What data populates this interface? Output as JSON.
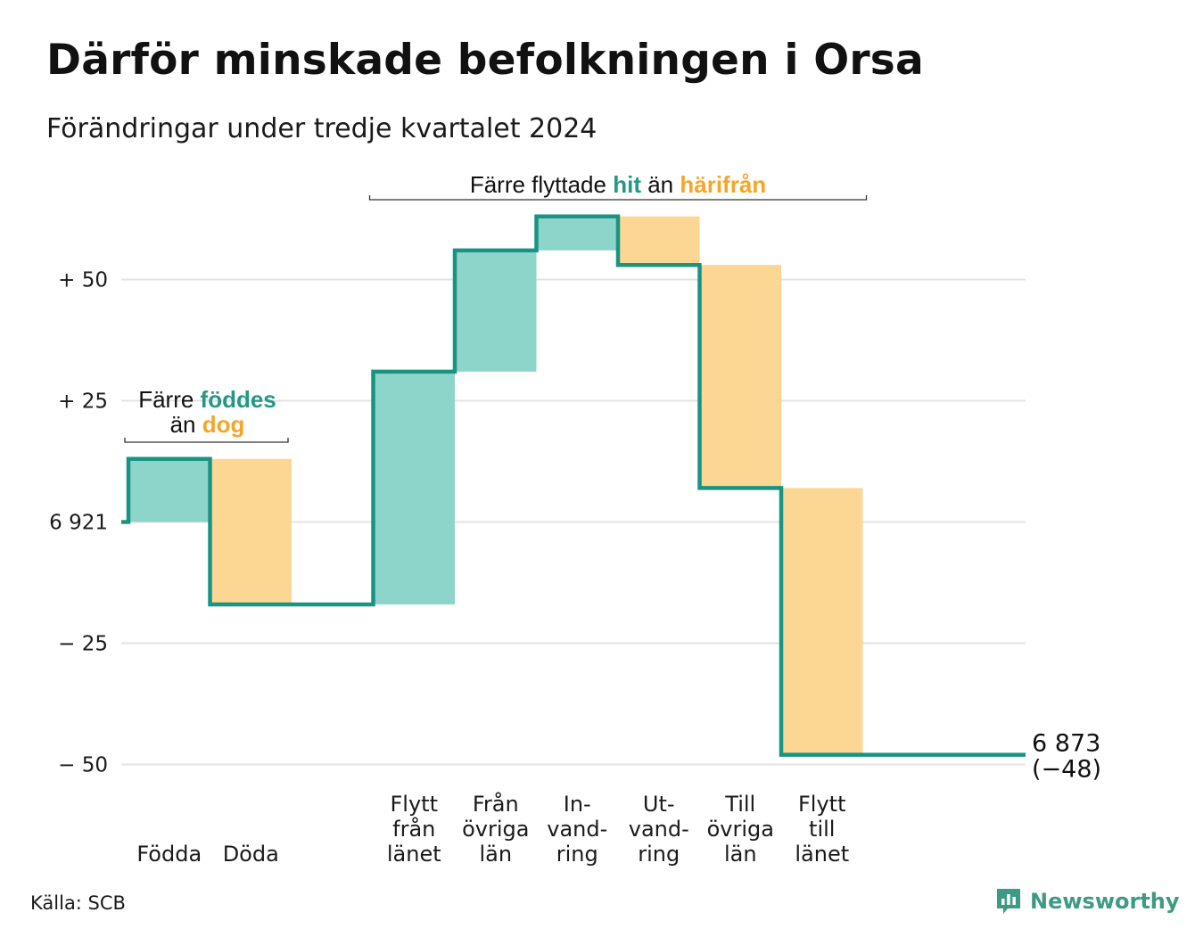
{
  "title": "Därför minskade befolkningen i Orsa",
  "subtitle": "Förändringar under tredje kvartalet 2024",
  "source": "Källa: SCB",
  "brand": "Newsworthy",
  "colors": {
    "inflow": "#8dd5cb",
    "outflow": "#fbd793",
    "line": "#1a9482",
    "inflow_text": "#239884",
    "outflow_text": "#f4a52a",
    "grid": "#e3e3e3"
  },
  "annotations": {
    "births_deaths": {
      "line1_prefix": "Färre",
      "line1_highlight": "föddes",
      "line2_prefix": "än",
      "line2_highlight": "dog"
    },
    "migration": {
      "prefix": "Färre flyttade",
      "highlight1": "hit",
      "middle": "än",
      "highlight2": "härifrån"
    }
  },
  "chart_data": {
    "type": "waterfall",
    "title": "Därför minskade befolkningen i Orsa",
    "subtitle": "Förändringar under tredje kvartalet 2024",
    "start_value": 6921,
    "end_value": 6873,
    "end_label": "6 873",
    "end_change_label": "(−48)",
    "yticks": [
      {
        "value": 50,
        "label": "+ 50"
      },
      {
        "value": 25,
        "label": "+ 25"
      },
      {
        "value": 0,
        "label": "6 921"
      },
      {
        "value": -25,
        "label": "− 25"
      },
      {
        "value": -50,
        "label": "− 50"
      }
    ],
    "ylim": [
      -52,
      66
    ],
    "grid": true,
    "steps": [
      {
        "category": "Födda",
        "label_lines": [
          "Födda"
        ],
        "value": 13,
        "kind": "in"
      },
      {
        "category": "Döda",
        "label_lines": [
          "Döda"
        ],
        "value": -30,
        "kind": "out"
      },
      {
        "category": "",
        "label_lines": [],
        "value": 0,
        "kind": "gap"
      },
      {
        "category": "Flytt från länet",
        "label_lines": [
          "Flytt",
          "från",
          "länet"
        ],
        "value": 48,
        "kind": "in"
      },
      {
        "category": "Från övriga län",
        "label_lines": [
          "Från",
          "övriga",
          "län"
        ],
        "value": 25,
        "kind": "in"
      },
      {
        "category": "Invandring",
        "label_lines": [
          "In-",
          "vand-",
          "ring"
        ],
        "value": 7,
        "kind": "in"
      },
      {
        "category": "Utvandring",
        "label_lines": [
          "Ut-",
          "vand-",
          "ring"
        ],
        "value": -10,
        "kind": "out"
      },
      {
        "category": "Till övriga län",
        "label_lines": [
          "Till",
          "övriga",
          "län"
        ],
        "value": -46,
        "kind": "out"
      },
      {
        "category": "Flytt till länet",
        "label_lines": [
          "Flytt",
          "till",
          "länet"
        ],
        "value": -55,
        "kind": "out"
      }
    ]
  }
}
